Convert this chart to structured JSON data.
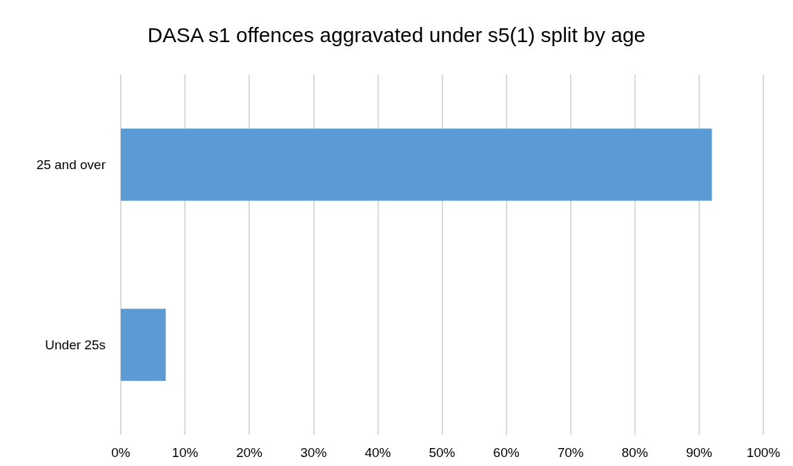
{
  "chart_data": {
    "type": "bar",
    "title": "DASA s1 offences aggravated under s5(1) split by age",
    "orientation": "horizontal",
    "categories": [
      "25 and over",
      "Under 25s"
    ],
    "values": [
      92,
      7
    ],
    "color": "#5b9bd5",
    "xlim": [
      0,
      100
    ],
    "xticks": [
      {
        "value": 0,
        "label": "0%"
      },
      {
        "value": 10,
        "label": "10%"
      },
      {
        "value": 20,
        "label": "20%"
      },
      {
        "value": 30,
        "label": "30%"
      },
      {
        "value": 40,
        "label": "40%"
      },
      {
        "value": 50,
        "label": "50%"
      },
      {
        "value": 60,
        "label": "60%"
      },
      {
        "value": 70,
        "label": "70%"
      },
      {
        "value": 80,
        "label": "80%"
      },
      {
        "value": 90,
        "label": "90%"
      },
      {
        "value": 100,
        "label": "100%"
      }
    ],
    "grid": "x"
  }
}
